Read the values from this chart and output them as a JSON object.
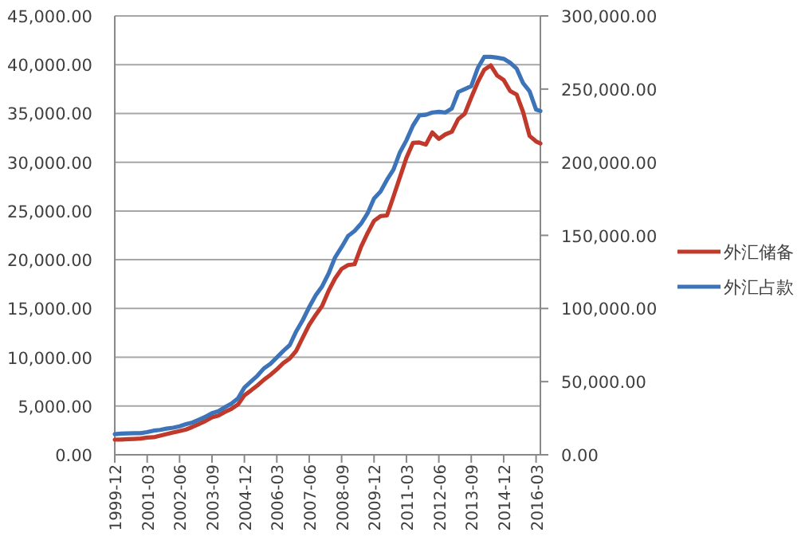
{
  "chart_data": {
    "type": "line",
    "x": [
      "1999-12",
      "2000-03",
      "2000-06",
      "2000-09",
      "2000-12",
      "2001-03",
      "2001-06",
      "2001-09",
      "2001-12",
      "2002-03",
      "2002-06",
      "2002-09",
      "2002-12",
      "2003-03",
      "2003-06",
      "2003-09",
      "2003-12",
      "2004-03",
      "2004-06",
      "2004-09",
      "2004-12",
      "2005-03",
      "2005-06",
      "2005-09",
      "2005-12",
      "2006-03",
      "2006-06",
      "2006-09",
      "2006-12",
      "2007-03",
      "2007-06",
      "2007-09",
      "2007-12",
      "2008-03",
      "2008-06",
      "2008-09",
      "2008-12",
      "2009-03",
      "2009-06",
      "2009-09",
      "2009-12",
      "2010-03",
      "2010-06",
      "2010-09",
      "2010-12",
      "2011-03",
      "2011-06",
      "2011-09",
      "2011-12",
      "2012-03",
      "2012-06",
      "2012-09",
      "2012-12",
      "2013-03",
      "2013-06",
      "2013-09",
      "2013-12",
      "2014-03",
      "2014-06",
      "2014-09",
      "2014-12",
      "2015-03",
      "2015-06",
      "2015-09",
      "2015-12",
      "2016-03",
      "2016-05"
    ],
    "series": [
      {
        "name": "外汇储备",
        "color": "#c0392b",
        "values": [
          1550,
          1570,
          1600,
          1630,
          1660,
          1760,
          1800,
          1960,
          2120,
          2280,
          2430,
          2590,
          2860,
          3160,
          3470,
          3840,
          4030,
          4400,
          4710,
          5150,
          6100,
          6590,
          7110,
          7690,
          8190,
          8750,
          9410,
          9880,
          10660,
          12020,
          13330,
          14340,
          15280,
          16820,
          18090,
          19060,
          19460,
          19540,
          21320,
          22730,
          23990,
          24470,
          24540,
          26480,
          28470,
          30450,
          31980,
          32020,
          31810,
          33050,
          32400,
          32850,
          33120,
          34430,
          34970,
          36630,
          38210,
          39480,
          39930,
          38880,
          38430,
          37300,
          36940,
          35140,
          32700,
          32130,
          31920
        ]
      },
      {
        "name": "外汇占款",
        "color": "#3d73b8",
        "axis": "y2",
        "values": [
          14100,
          14500,
          14600,
          14800,
          14800,
          15500,
          16500,
          17000,
          17900,
          18500,
          19500,
          21000,
          22100,
          24000,
          26000,
          28500,
          29800,
          32500,
          35000,
          38500,
          45900,
          50000,
          54000,
          59000,
          62100,
          66500,
          71000,
          75000,
          84400,
          92000,
          101000,
          109000,
          115200,
          124000,
          135000,
          142000,
          149600,
          153000,
          158000,
          165000,
          175200,
          180000,
          188000,
          195000,
          206800,
          215000,
          225000,
          232000,
          232400,
          234000,
          234500,
          234000,
          236700,
          248000,
          250000,
          252000,
          264300,
          272000,
          272000,
          271500,
          270700,
          268000,
          264000,
          254000,
          248500,
          236000,
          235000
        ]
      }
    ],
    "xlim": [
      "1999-12",
      "2016-05"
    ],
    "xticks": [
      "1999-12",
      "2001-03",
      "2002-06",
      "2003-09",
      "2004-12",
      "2006-03",
      "2007-06",
      "2008-09",
      "2009-12",
      "2011-03",
      "2012-06",
      "2013-09",
      "2014-12",
      "2016-03"
    ],
    "ylim": [
      0,
      45000
    ],
    "yticks": [
      {
        "value": 0,
        "label": "0.00"
      },
      {
        "value": 5000,
        "label": "5,000.00"
      },
      {
        "value": 10000,
        "label": "10,000.00"
      },
      {
        "value": 15000,
        "label": "15,000.00"
      },
      {
        "value": 20000,
        "label": "20,000.00"
      },
      {
        "value": 25000,
        "label": "25,000.00"
      },
      {
        "value": 30000,
        "label": "30,000.00"
      },
      {
        "value": 35000,
        "label": "35,000.00"
      },
      {
        "value": 40000,
        "label": "40,000.00"
      },
      {
        "value": 45000,
        "label": "45,000.00"
      }
    ],
    "y2lim": [
      0,
      300000
    ],
    "y2ticks": [
      {
        "value": 0,
        "label": "0.00"
      },
      {
        "value": 50000,
        "label": "50,000.00"
      },
      {
        "value": 100000,
        "label": "100,000.00"
      },
      {
        "value": 150000,
        "label": "150,000.00"
      },
      {
        "value": 200000,
        "label": "200,000.00"
      },
      {
        "value": 250000,
        "label": "250,000.00"
      },
      {
        "value": 300000,
        "label": "300,000.00"
      }
    ],
    "grid": "y",
    "legend": "right",
    "line_style": "solid",
    "marker": "none"
  }
}
